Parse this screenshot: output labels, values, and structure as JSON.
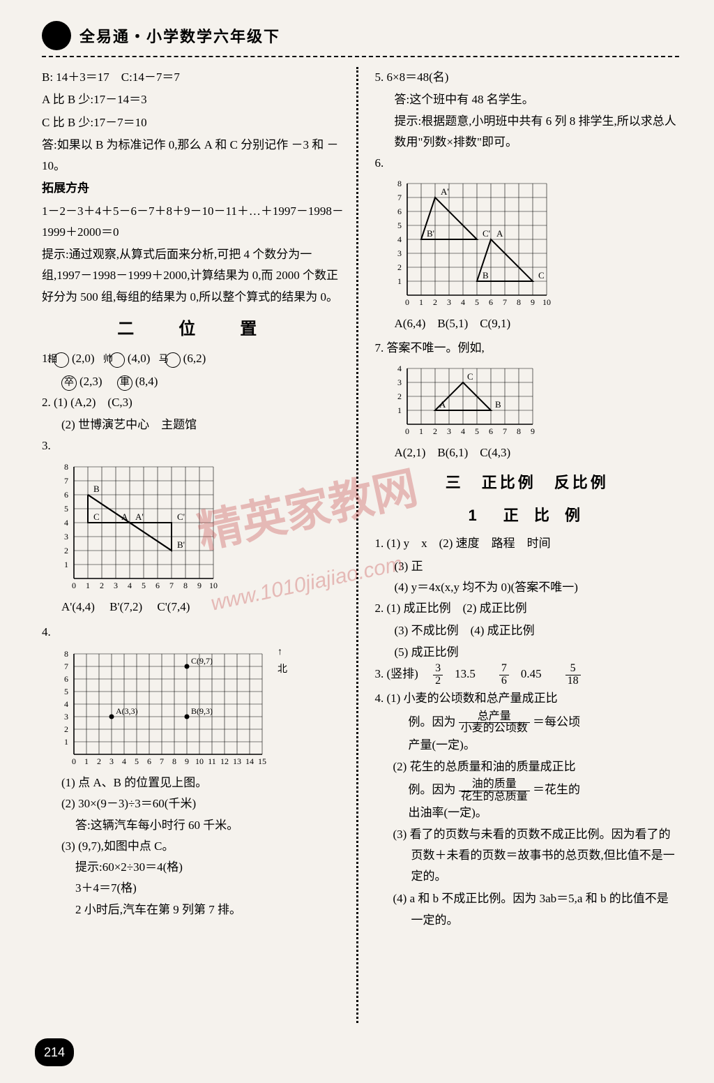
{
  "header": {
    "title": "全易通・小学数学六年级下"
  },
  "watermark": {
    "text_cn": "精英家教网",
    "text_url": "www.1010jiajiao.com"
  },
  "page_number": "214",
  "left": {
    "p1": "B: 14＋3＝17　C:14－7＝7",
    "p2": "A 比 B 少:17－14＝3",
    "p3": "C 比 B 少:17－7＝10",
    "p4": "答:如果以 B 为标准记作 0,那么 A 和 C 分别记作 －3 和 －10。",
    "expand_head": "拓展方舟",
    "p5": "1－2－3＋4＋5－6－7＋8＋9－10－11＋…＋1997－1998－1999＋2000＝0",
    "p6": "提示:通过观察,从算式后面来分析,可把 4 个数分为一组,1997－1998－1999＋2000,计算结果为 0,而 2000 个数正好分为 500 组,每组的结果为 0,所以整个算式的结果为 0。",
    "sec2_title": "二　位　置",
    "q1": {
      "a": "相",
      "a_coord": "(2,0)",
      "b": "帅",
      "b_coord": "(4,0)",
      "c": "马",
      "c_coord": "(6,2)",
      "d": "卒",
      "d_coord": "(2,3)",
      "e": "車",
      "e_coord": "(8,4)"
    },
    "q2_1": "(1) (A,2)　(C,3)",
    "q2_2": "(2) 世博演艺中心　主题馆",
    "q3_labels": [
      "A'(4,4)",
      "B'(7,2)",
      "C'(7,4)"
    ],
    "grid3": {
      "xmax": 10,
      "ymax": 8,
      "cell": 20,
      "points": {
        "B": [
          1,
          6
        ],
        "A": [
          3,
          4
        ],
        "Ap": [
          4,
          4
        ],
        "Cp": [
          7,
          4
        ],
        "C": [
          1,
          4
        ],
        "Bp": [
          7,
          2
        ]
      },
      "xticks": [
        "0",
        "1",
        "2",
        "3",
        "4",
        "5",
        "6",
        "7",
        "8",
        "9",
        "10"
      ],
      "yticks": [
        "1",
        "2",
        "3",
        "4",
        "5",
        "6",
        "7",
        "8"
      ]
    },
    "grid4": {
      "xmax": 15,
      "ymax": 8,
      "cell": 18,
      "points": {
        "A": [
          3,
          3
        ],
        "B": [
          9,
          3
        ],
        "C": [
          9,
          7
        ]
      },
      "xticks": [
        "0",
        "1",
        "2",
        "3",
        "4",
        "5",
        "6",
        "7",
        "8",
        "9",
        "10",
        "11",
        "12",
        "13",
        "14",
        "15"
      ],
      "yticks": [
        "1",
        "2",
        "3",
        "4",
        "5",
        "6",
        "7",
        "8"
      ]
    },
    "q4_north": "北",
    "q4_1": "(1) 点 A、B 的位置见上图。",
    "q4_2a": "(2) 30×(9－3)÷3＝60(千米)",
    "q4_2b": "答:这辆汽车每小时行 60 千米。",
    "q4_3a": "(3) (9,7),如图中点 C。",
    "q4_3b": "提示:60×2÷30＝4(格)",
    "q4_3c": "3＋4＝7(格)",
    "q4_3d": "2 小时后,汽车在第 9 列第 7 排。"
  },
  "right": {
    "q5a": "5. 6×8＝48(名)",
    "q5b": "答:这个班中有 48 名学生。",
    "q5c": "提示:根据题意,小明班中共有 6 列 8 排学生,所以求总人数用\"列数×排数\"即可。",
    "q6_label": "6.",
    "grid6": {
      "xmax": 10,
      "ymax": 8,
      "cell": 20,
      "points": {
        "A'": [
          2,
          7
        ],
        "B'": [
          1,
          4
        ],
        "C'": [
          5,
          4
        ],
        "A": [
          6,
          4
        ],
        "B": [
          5,
          1
        ],
        "C": [
          9,
          1
        ]
      },
      "tri1": [
        [
          2,
          7
        ],
        [
          1,
          4
        ],
        [
          5,
          4
        ]
      ],
      "tri2": [
        [
          6,
          4
        ],
        [
          5,
          1
        ],
        [
          9,
          1
        ]
      ],
      "xticks": [
        "0",
        "1",
        "2",
        "3",
        "4",
        "5",
        "6",
        "7",
        "8",
        "9",
        "10"
      ],
      "yticks": [
        "1",
        "2",
        "3",
        "4",
        "5",
        "6",
        "7",
        "8"
      ]
    },
    "q6_coords": "A(6,4)　B(5,1)　C(9,1)",
    "q7a": "7. 答案不唯一。例如,",
    "grid7": {
      "xmax": 9,
      "ymax": 4,
      "cell": 20,
      "points": {
        "A": [
          2,
          1
        ],
        "B": [
          6,
          1
        ],
        "C": [
          4,
          3
        ]
      },
      "tri": [
        [
          2,
          1
        ],
        [
          6,
          1
        ],
        [
          4,
          3
        ]
      ],
      "xticks": [
        "0",
        "1",
        "2",
        "3",
        "4",
        "5",
        "6",
        "7",
        "8",
        "9"
      ],
      "yticks": [
        "1",
        "2",
        "3",
        "4"
      ]
    },
    "q7_coords": "A(2,1)　B(6,1)　C(4,3)",
    "sec3_title": "三　正比例　反比例",
    "sec3_sub": "1　正 比 例",
    "s3q1": "1. (1) y　x　(2) 速度　路程　时间",
    "s3q1b": "(3) 正",
    "s3q1c": "(4) y＝4x(x,y 均不为 0)(答案不唯一)",
    "s3q2a": "2. (1) 成正比例　(2) 成正比例",
    "s3q2b": "(3) 不成比例　(4) 成正比例",
    "s3q2c": "(5) 成正比例",
    "s3q3_label": "3. (竖排)",
    "s3q3_fracs": [
      {
        "n": "3",
        "d": "2"
      },
      "13.5",
      {
        "n": "7",
        "d": "6"
      },
      "0.45",
      {
        "n": "5",
        "d": "18"
      }
    ],
    "s3q4_1a": "4. (1) 小麦的公顷数和总产量成正比",
    "s3q4_1b_pre": "例。因为",
    "s3q4_1b_num": "总产量",
    "s3q4_1b_den": "小麦的公顷数",
    "s3q4_1b_post": "＝每公顷",
    "s3q4_1c": "产量(一定)。",
    "s3q4_2a": "(2) 花生的总质量和油的质量成正比",
    "s3q4_2b_pre": "例。因为",
    "s3q4_2b_num": "油的质量",
    "s3q4_2b_den": "花生的总质量",
    "s3q4_2b_post": "＝花生的",
    "s3q4_2c": "出油率(一定)。",
    "s3q4_3": "(3) 看了的页数与未看的页数不成正比例。因为看了的页数＋未看的页数＝故事书的总页数,但比值不是一定的。",
    "s3q4_4": "(4) a 和 b 不成正比例。因为 3ab＝5,a 和 b 的比值不是一定的。"
  },
  "colors": {
    "bg": "#f5f2ed",
    "text": "#000000",
    "grid": "#000000",
    "watermark": "rgba(200,80,80,0.35)"
  }
}
